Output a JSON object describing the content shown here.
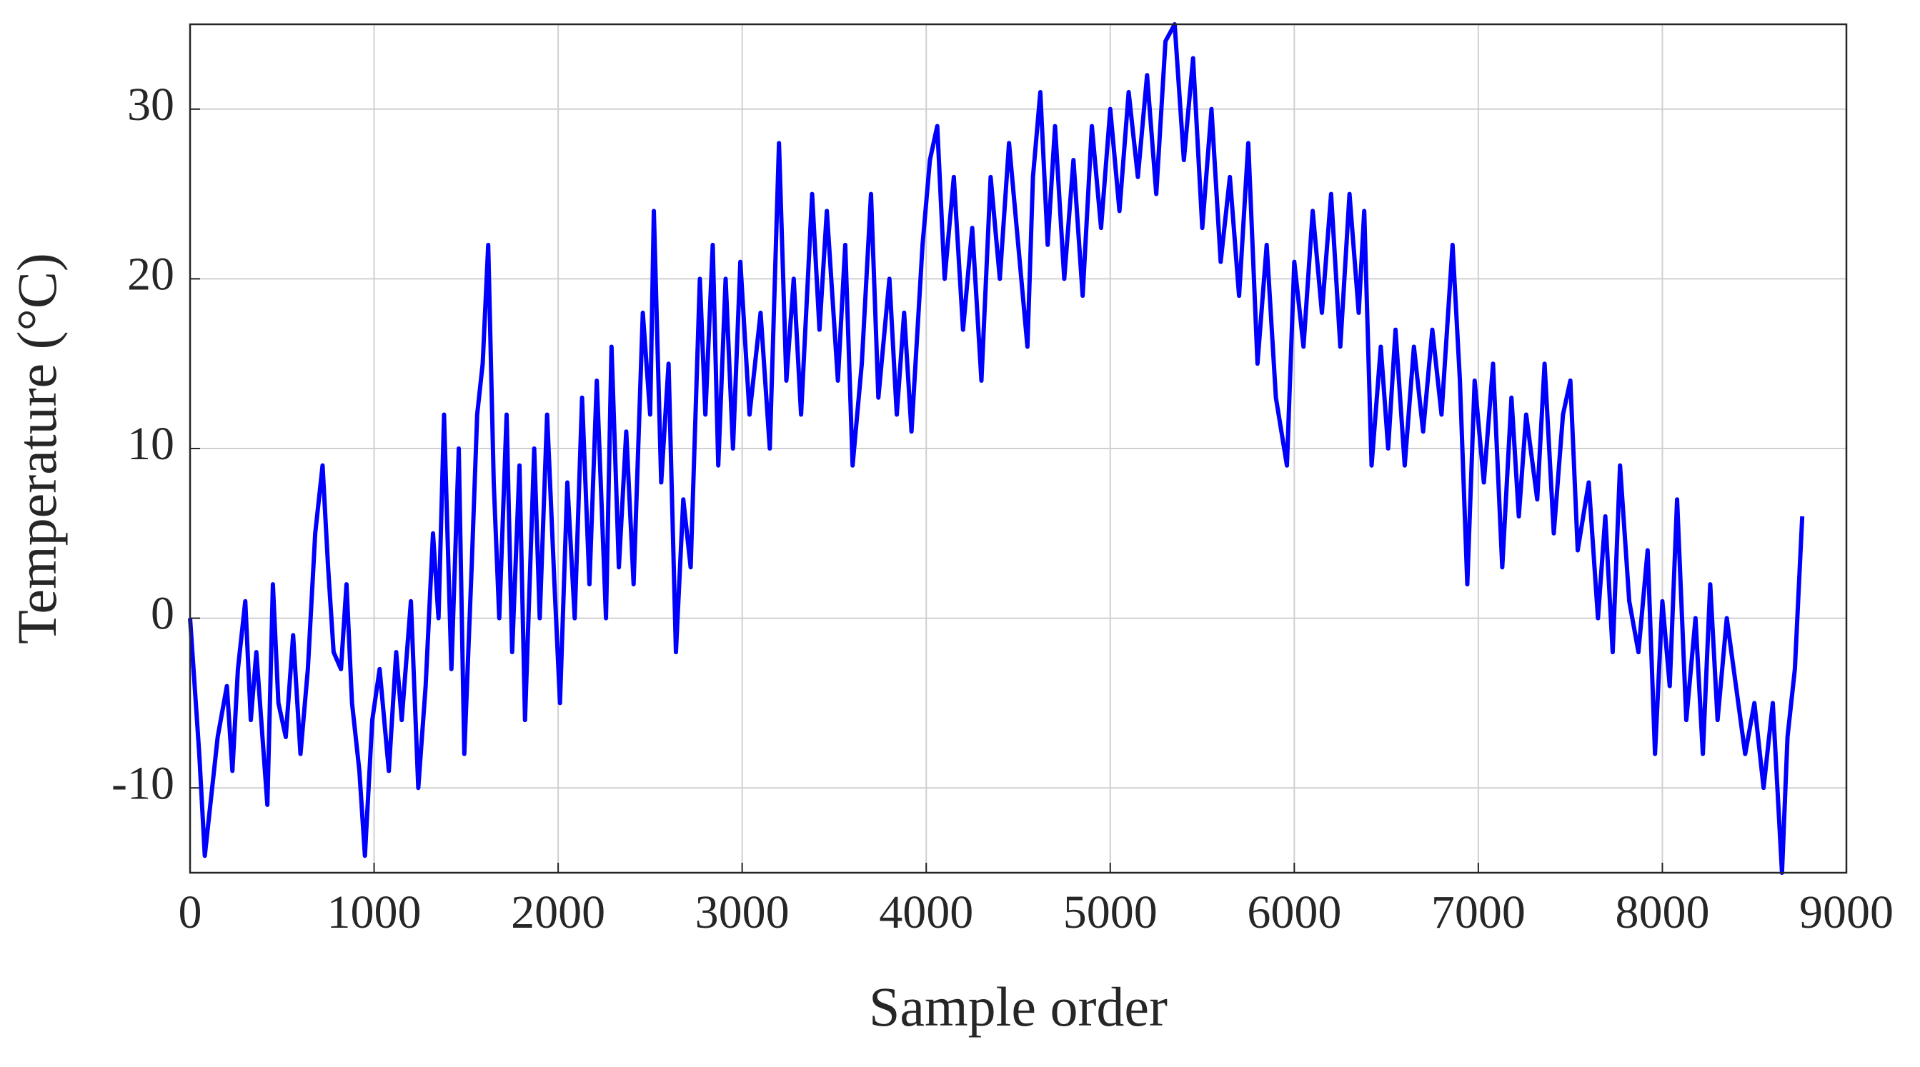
{
  "chart_data": {
    "type": "line",
    "xlabel": "Sample order",
    "ylabel": "Temperature (°C)",
    "xlim": [
      0,
      9000
    ],
    "xticks": [
      0,
      1000,
      2000,
      3000,
      4000,
      5000,
      6000,
      7000,
      8000,
      9000
    ],
    "ylim": [
      -15,
      35
    ],
    "yticks": [
      -10,
      0,
      10,
      20,
      30
    ],
    "grid": true,
    "x": [
      0,
      50,
      80,
      120,
      150,
      200,
      230,
      260,
      300,
      330,
      360,
      400,
      420,
      450,
      480,
      520,
      560,
      600,
      640,
      680,
      720,
      750,
      780,
      820,
      850,
      880,
      920,
      950,
      990,
      1030,
      1080,
      1120,
      1150,
      1200,
      1240,
      1280,
      1320,
      1350,
      1380,
      1420,
      1460,
      1490,
      1530,
      1560,
      1590,
      1620,
      1650,
      1680,
      1720,
      1750,
      1790,
      1820,
      1870,
      1900,
      1940,
      1980,
      2010,
      2050,
      2090,
      2130,
      2170,
      2210,
      2260,
      2290,
      2330,
      2370,
      2410,
      2460,
      2500,
      2520,
      2560,
      2600,
      2640,
      2680,
      2720,
      2770,
      2800,
      2840,
      2870,
      2910,
      2950,
      2990,
      3040,
      3100,
      3150,
      3200,
      3240,
      3280,
      3320,
      3380,
      3420,
      3460,
      3520,
      3560,
      3600,
      3650,
      3700,
      3740,
      3800,
      3840,
      3880,
      3920,
      3980,
      4020,
      4060,
      4100,
      4150,
      4200,
      4250,
      4300,
      4350,
      4400,
      4450,
      4500,
      4550,
      4580,
      4620,
      4660,
      4700,
      4750,
      4800,
      4850,
      4900,
      4950,
      5000,
      5050,
      5100,
      5150,
      5200,
      5250,
      5300,
      5350,
      5400,
      5450,
      5500,
      5550,
      5600,
      5650,
      5700,
      5750,
      5800,
      5850,
      5900,
      5960,
      6000,
      6050,
      6100,
      6150,
      6200,
      6250,
      6300,
      6350,
      6380,
      6420,
      6470,
      6510,
      6550,
      6600,
      6650,
      6700,
      6750,
      6800,
      6860,
      6900,
      6940,
      6980,
      7030,
      7080,
      7130,
      7180,
      7220,
      7260,
      7320,
      7360,
      7410,
      7460,
      7500,
      7540,
      7600,
      7650,
      7690,
      7730,
      7770,
      7820,
      7870,
      7920,
      7960,
      8000,
      8040,
      8080,
      8130,
      8180,
      8220,
      8260,
      8300,
      8350,
      8400,
      8450,
      8500,
      8550,
      8600,
      8650,
      8680,
      8720,
      8760
    ],
    "series": [
      {
        "name": "Temperature",
        "color": "#0000ff",
        "values": [
          0,
          -8,
          -14,
          -10,
          -7,
          -4,
          -9,
          -3,
          1,
          -6,
          -2,
          -8,
          -11,
          2,
          -5,
          -7,
          -1,
          -8,
          -3,
          5,
          9,
          3,
          -2,
          -3,
          2,
          -5,
          -9,
          -14,
          -6,
          -3,
          -9,
          -2,
          -6,
          1,
          -10,
          -4,
          5,
          0,
          12,
          -3,
          10,
          -8,
          3,
          12,
          15,
          22,
          8,
          0,
          12,
          -2,
          9,
          -6,
          10,
          0,
          12,
          2,
          -5,
          8,
          0,
          13,
          2,
          14,
          0,
          16,
          3,
          11,
          2,
          18,
          12,
          24,
          8,
          15,
          -2,
          7,
          3,
          20,
          12,
          22,
          9,
          20,
          10,
          21,
          12,
          18,
          10,
          28,
          14,
          20,
          12,
          25,
          17,
          24,
          14,
          22,
          9,
          15,
          25,
          13,
          20,
          12,
          18,
          11,
          22,
          27,
          29,
          20,
          26,
          17,
          23,
          14,
          26,
          20,
          28,
          22,
          16,
          26,
          31,
          22,
          29,
          20,
          27,
          19,
          29,
          23,
          30,
          24,
          31,
          26,
          32,
          25,
          34,
          35,
          27,
          33,
          23,
          30,
          21,
          26,
          19,
          28,
          15,
          22,
          13,
          9,
          21,
          16,
          24,
          18,
          25,
          16,
          25,
          18,
          24,
          9,
          16,
          10,
          17,
          9,
          16,
          11,
          17,
          12,
          22,
          14,
          2,
          14,
          8,
          15,
          3,
          13,
          6,
          12,
          7,
          15,
          5,
          12,
          14,
          4,
          8,
          0,
          6,
          -2,
          9,
          1,
          -2,
          4,
          -8,
          1,
          -4,
          7,
          -6,
          0,
          -8,
          2,
          -6,
          0,
          -4,
          -8,
          -5,
          -10,
          -5,
          -15,
          -7,
          -3,
          6
        ]
      }
    ]
  }
}
